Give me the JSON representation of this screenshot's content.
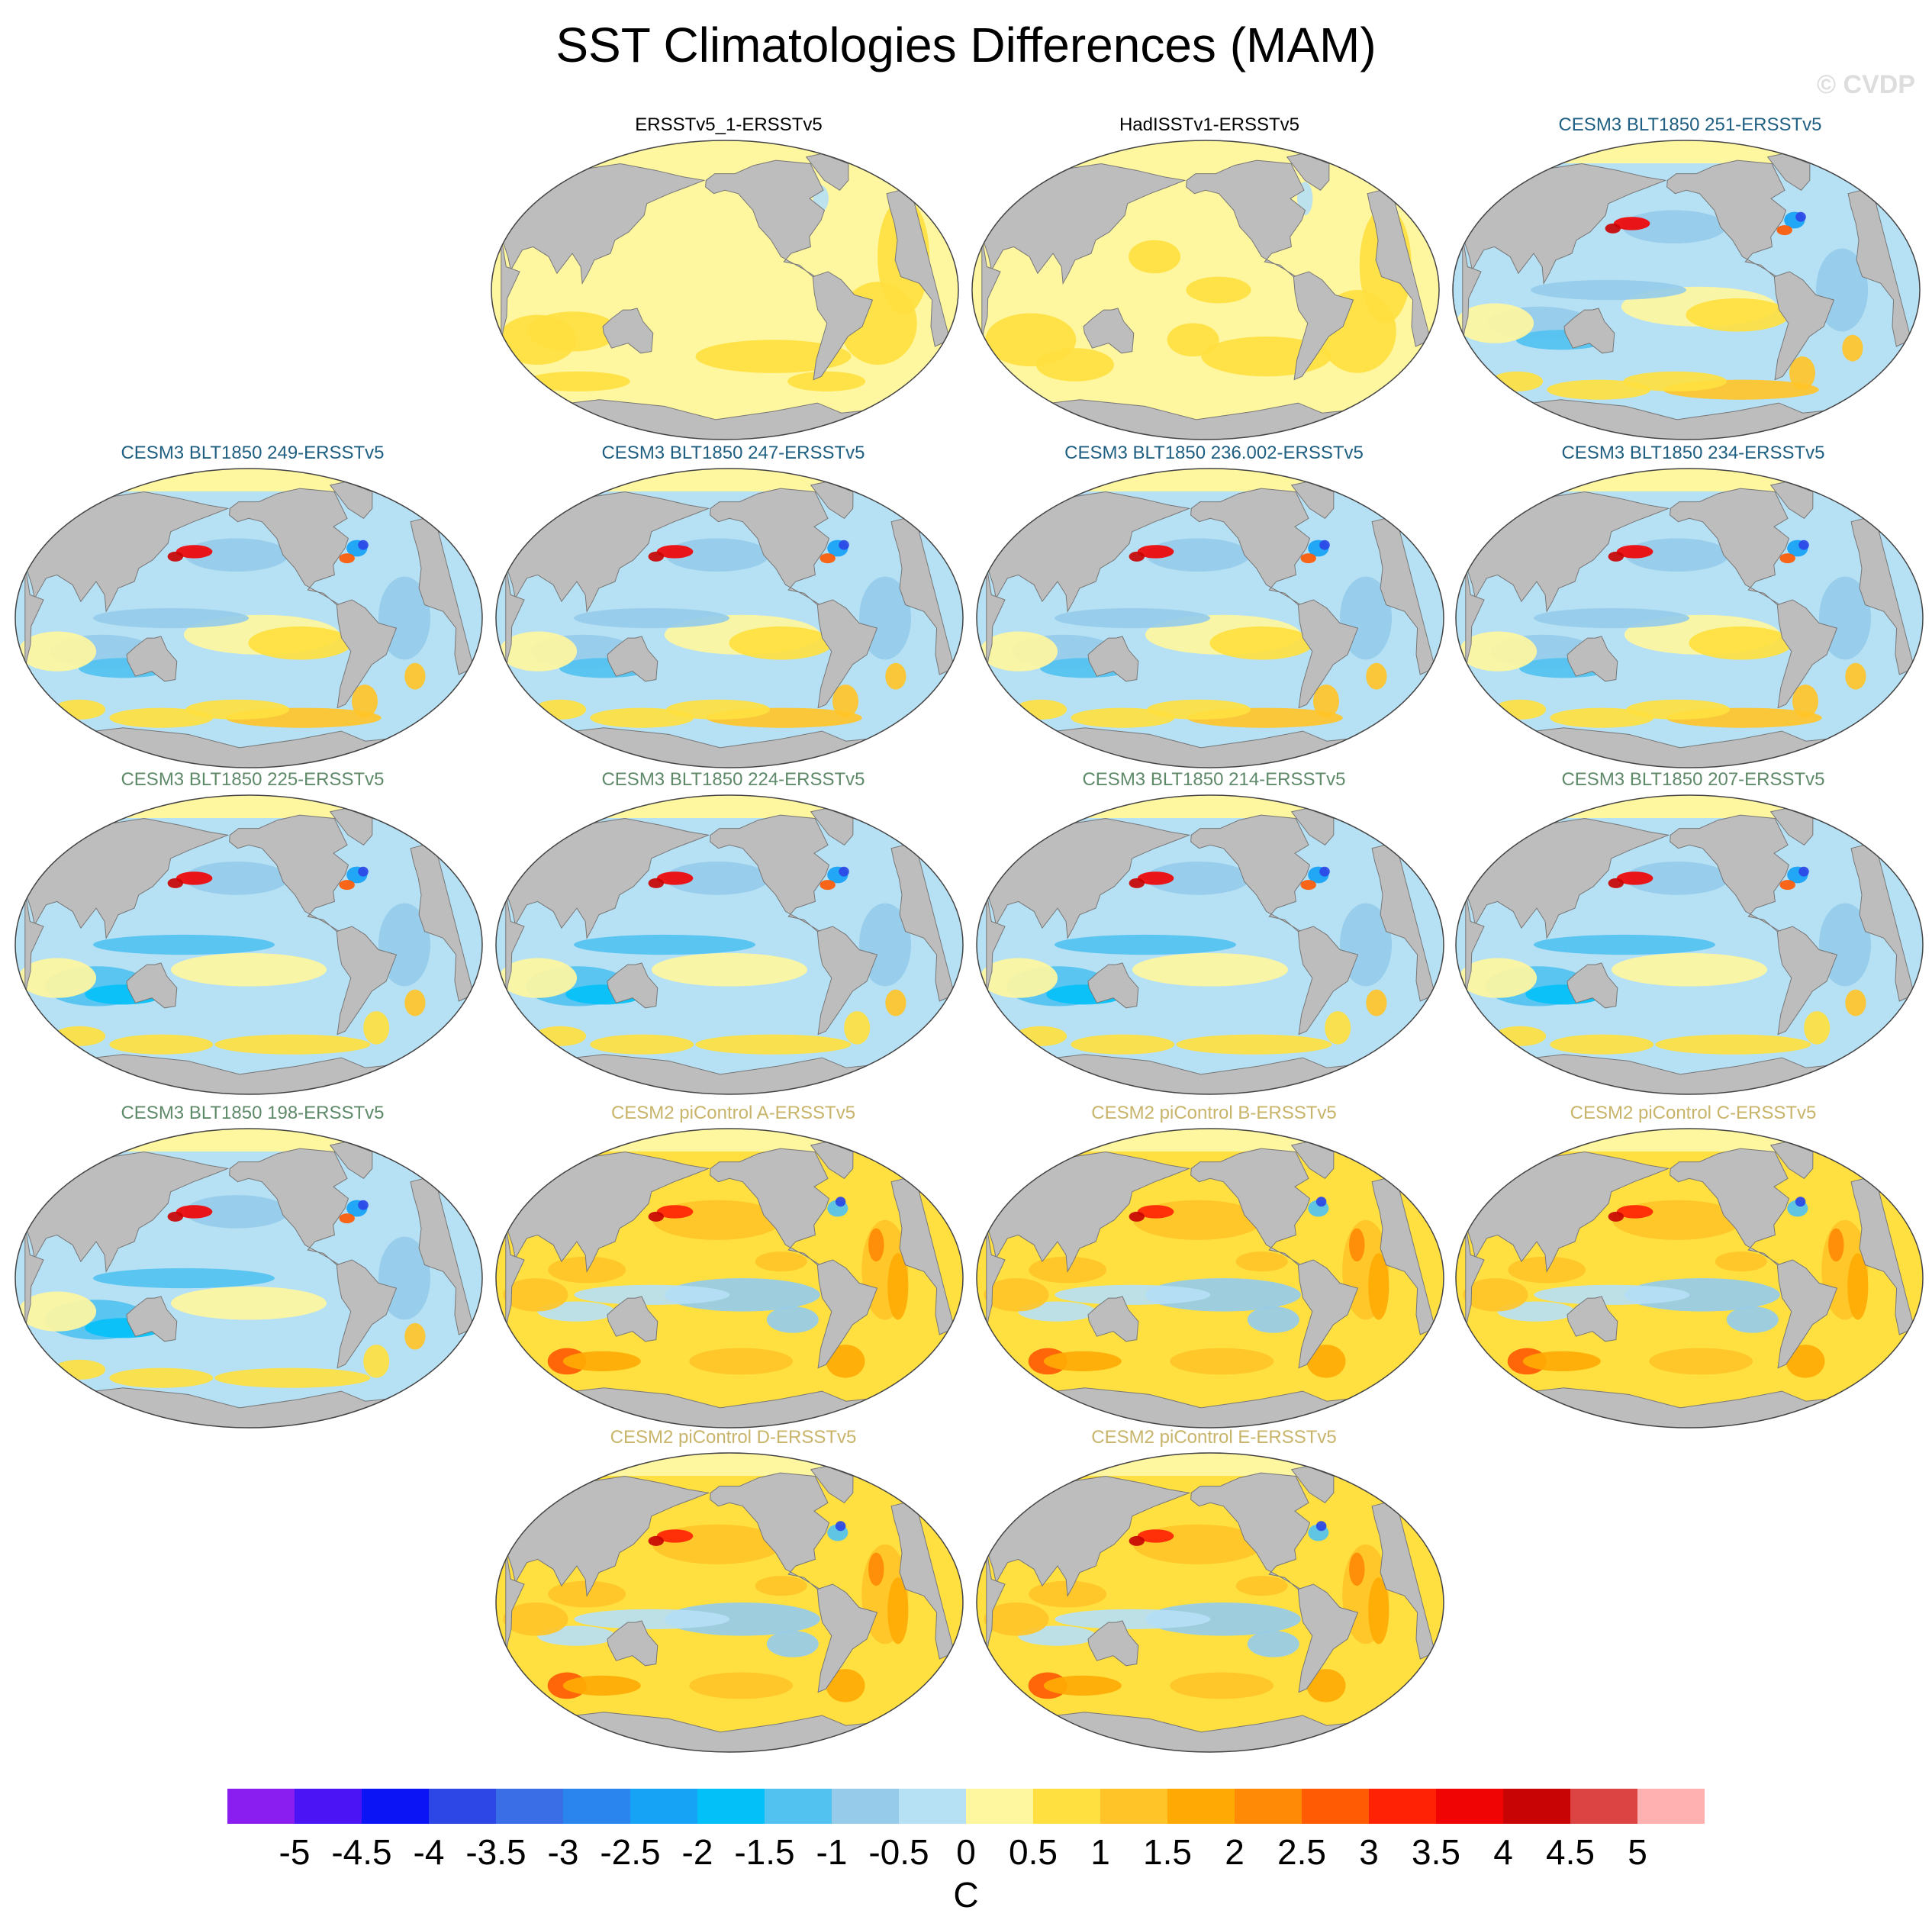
{
  "title": "SST Climatologies Differences (MAM)",
  "watermark": "© CVDP",
  "panels": [
    {
      "label": "ERSSTv5_1-ERSSTv5",
      "label_color": "#000000",
      "pattern": "obs1"
    },
    {
      "label": "HadISSTv1-ERSSTv5",
      "label_color": "#000000",
      "pattern": "obs2"
    },
    {
      "label": "CESM3 BLT1850 251-ERSSTv5",
      "label_color": "#1f5f82",
      "pattern": "cesm3"
    },
    {
      "label": "CESM3 BLT1850 249-ERSSTv5",
      "label_color": "#1f5f82",
      "pattern": "cesm3"
    },
    {
      "label": "CESM3 BLT1850 247-ERSSTv5",
      "label_color": "#1f5f82",
      "pattern": "cesm3"
    },
    {
      "label": "CESM3 BLT1850 236.002-ERSSTv5",
      "label_color": "#1f5f82",
      "pattern": "cesm3"
    },
    {
      "label": "CESM3 BLT1850 234-ERSSTv5",
      "label_color": "#1f5f82",
      "pattern": "cesm3"
    },
    {
      "label": "CESM3 BLT1850 225-ERSSTv5",
      "label_color": "#5f8a6a",
      "pattern": "cesm3b"
    },
    {
      "label": "CESM3 BLT1850 224-ERSSTv5",
      "label_color": "#5f8a6a",
      "pattern": "cesm3b"
    },
    {
      "label": "CESM3 BLT1850 214-ERSSTv5",
      "label_color": "#5f8a6a",
      "pattern": "cesm3b"
    },
    {
      "label": "CESM3 BLT1850 207-ERSSTv5",
      "label_color": "#5f8a6a",
      "pattern": "cesm3b"
    },
    {
      "label": "CESM3 BLT1850 198-ERSSTv5",
      "label_color": "#5f8a6a",
      "pattern": "cesm3b"
    },
    {
      "label": "CESM2 piControl A-ERSSTv5",
      "label_color": "#c8b46a",
      "pattern": "cesm2"
    },
    {
      "label": "CESM2 piControl B-ERSSTv5",
      "label_color": "#c8b46a",
      "pattern": "cesm2"
    },
    {
      "label": "CESM2 piControl C-ERSSTv5",
      "label_color": "#c8b46a",
      "pattern": "cesm2"
    },
    {
      "label": "CESM2 piControl D-ERSSTv5",
      "label_color": "#c8b46a",
      "pattern": "cesm2"
    },
    {
      "label": "CESM2 piControl E-ERSSTv5",
      "label_color": "#c8b46a",
      "pattern": "cesm2"
    }
  ],
  "colorbar": {
    "units": "C",
    "labels": [
      "-5",
      "-4.5",
      "-4",
      "-3.5",
      "-3",
      "-2.5",
      "-2",
      "-1.5",
      "-1",
      "-0.5",
      "0",
      "0.5",
      "1",
      "1.5",
      "2",
      "2.5",
      "3",
      "3.5",
      "4",
      "4.5",
      "5"
    ],
    "colors": [
      "#8a1ef0",
      "#4a14f5",
      "#0a14f5",
      "#2d46e6",
      "#3a6ee6",
      "#2a86ee",
      "#16a2f5",
      "#04c0f8",
      "#52c2f0",
      "#96ccea",
      "#b6e0f4",
      "#fff6a0",
      "#ffe040",
      "#ffc428",
      "#ffaa04",
      "#ff8a06",
      "#ff5a04",
      "#ff2204",
      "#f00404",
      "#c80404",
      "#dc4444",
      "#ffb0b0"
    ]
  }
}
